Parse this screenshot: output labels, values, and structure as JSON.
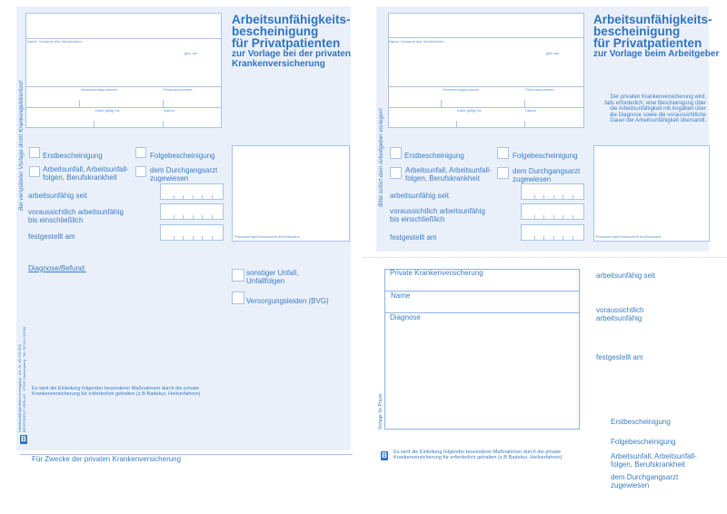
{
  "left_form": {
    "title_lines": [
      "Arbeitsunfähigkeits-",
      "bescheinigung",
      "für Privatpatienten"
    ],
    "subtitle_lines": [
      "zur Vorlage bei der privaten",
      "Krankenversicherung"
    ],
    "side_notice": "Bei verspäteter Vorlage droht Krankengeldverlust!",
    "field_labels": {
      "name": "Name, Vorname des Versicherten",
      "born": "geb. am",
      "insurance_number": "Versicherungsnummer",
      "personnel_number": "Personennummer",
      "card_valid": "Karte gültig bis",
      "date": "Datum"
    },
    "checkboxes": {
      "first": "Erstbescheinigung",
      "followup": "Folgebescheinigung",
      "accident": [
        "Arbeitsunfall, Arbeitsunfall-",
        "folgen, Berufskrankheit"
      ],
      "referred": [
        "dem Durchgangsarzt",
        "zugewiesen"
      ],
      "other_accident": [
        "sonstiger Unfall,",
        "Unfallfolgen"
      ],
      "bvg": "Versorgungsleiden (BVG)"
    },
    "dates": {
      "since": "arbeitsunfähig seit",
      "until": [
        "voraussichtlich arbeitsunfähig",
        "bis einschließlich"
      ],
      "determined": "festgestellt am"
    },
    "stamp_label": "Praxisstempel/Unterschrift Arzt/Zahnarzt",
    "diagnosis_label": "Diagnose/Befund:",
    "measures_text": [
      "Es wird die Einleitung folgender besonderer Maßnahmen durch die private",
      "Krankenversicherung für erforderlich gehalten (z.B Badekur, Heilverfahren)"
    ],
    "imprint_lines": [
      "Arbeitsunfähigkeitsbescheinigung · Art.-Nr. 83 202 503",
      "BEYCODENT-VERLAG · 57567 Hachenburg · Tel. 02744 / 92000"
    ],
    "logo": "B",
    "footer": "Für Zwecke der privaten Krankenversicherung"
  },
  "right_form": {
    "title_lines": [
      "Arbeitsunfähigkeits-",
      "bescheinigung",
      "für Privatpatienten"
    ],
    "subtitle": "zur Vorlage beim Arbeitgeber",
    "side_notice": "Bitte sofort dem Arbeitgeber vorlegen!",
    "info_lines": [
      "Der privaten Krankenversicherung wird,",
      "falls erforderlich, eine Bescheinigung über",
      "die Arbeitsunfähigkeit mit Angaben über",
      "die Diagnose sowie die voraussichtliche",
      "Dauer der Arbeitsunfähigkeit übersandt."
    ],
    "field_labels": {
      "name": "Name, Vorname des Versicherten",
      "born": "geb. am",
      "insurance_number": "Versicherungsnummer",
      "personnel_number": "Personennummer",
      "card_valid": "Karte gültig bis",
      "date": "Datum"
    },
    "checkboxes": {
      "first": "Erstbescheinigung",
      "followup": "Folgebescheinigung",
      "accident": [
        "Arbeitsunfall, Arbeitsunfall-",
        "folgen, Berufskrankheit"
      ],
      "referred": [
        "dem Durchgangsarzt",
        "zugewiesen"
      ]
    },
    "dates": {
      "since": "arbeitsunfähig seit",
      "until": [
        "voraussichtlich arbeitsunfähig",
        "bis einschließlich"
      ],
      "determined": "festgestellt am"
    },
    "stamp_label": "Praxisstempel/Unterschrift Arzt/Zahnarzt"
  },
  "practice_copy": {
    "insurance_label": "Private Krankenversicherung",
    "name_label": "Name",
    "diagnosis_label": "Diagnose",
    "side_notice": "Vorlage für Praxis",
    "measures_text": [
      "Es wird die Einleitung folgender besonderer Maßnahmen durch die private",
      "Krankenversicherung für erforderlich gehalten (z.B Badekur, Heilverfahren)"
    ],
    "logo": "B",
    "right_labels": {
      "since": "arbeitsunfähig seit",
      "until": [
        "voraussichtlich",
        "arbeitsunfähig"
      ],
      "determined": "festgestellt am",
      "first": "Erstbescheinigung",
      "followup": "Folgebescheinigung",
      "accident": [
        "Arbeitsunfall, Arbeitsunfall-",
        "folgen, Berufskrankheit"
      ],
      "referred": [
        "dem Durchgangsarzt",
        "zugewiesen"
      ]
    }
  },
  "colors": {
    "form_blue": "#2f74c0",
    "panel_bg": "#eaf0fa",
    "line": "#a9c4e6"
  }
}
